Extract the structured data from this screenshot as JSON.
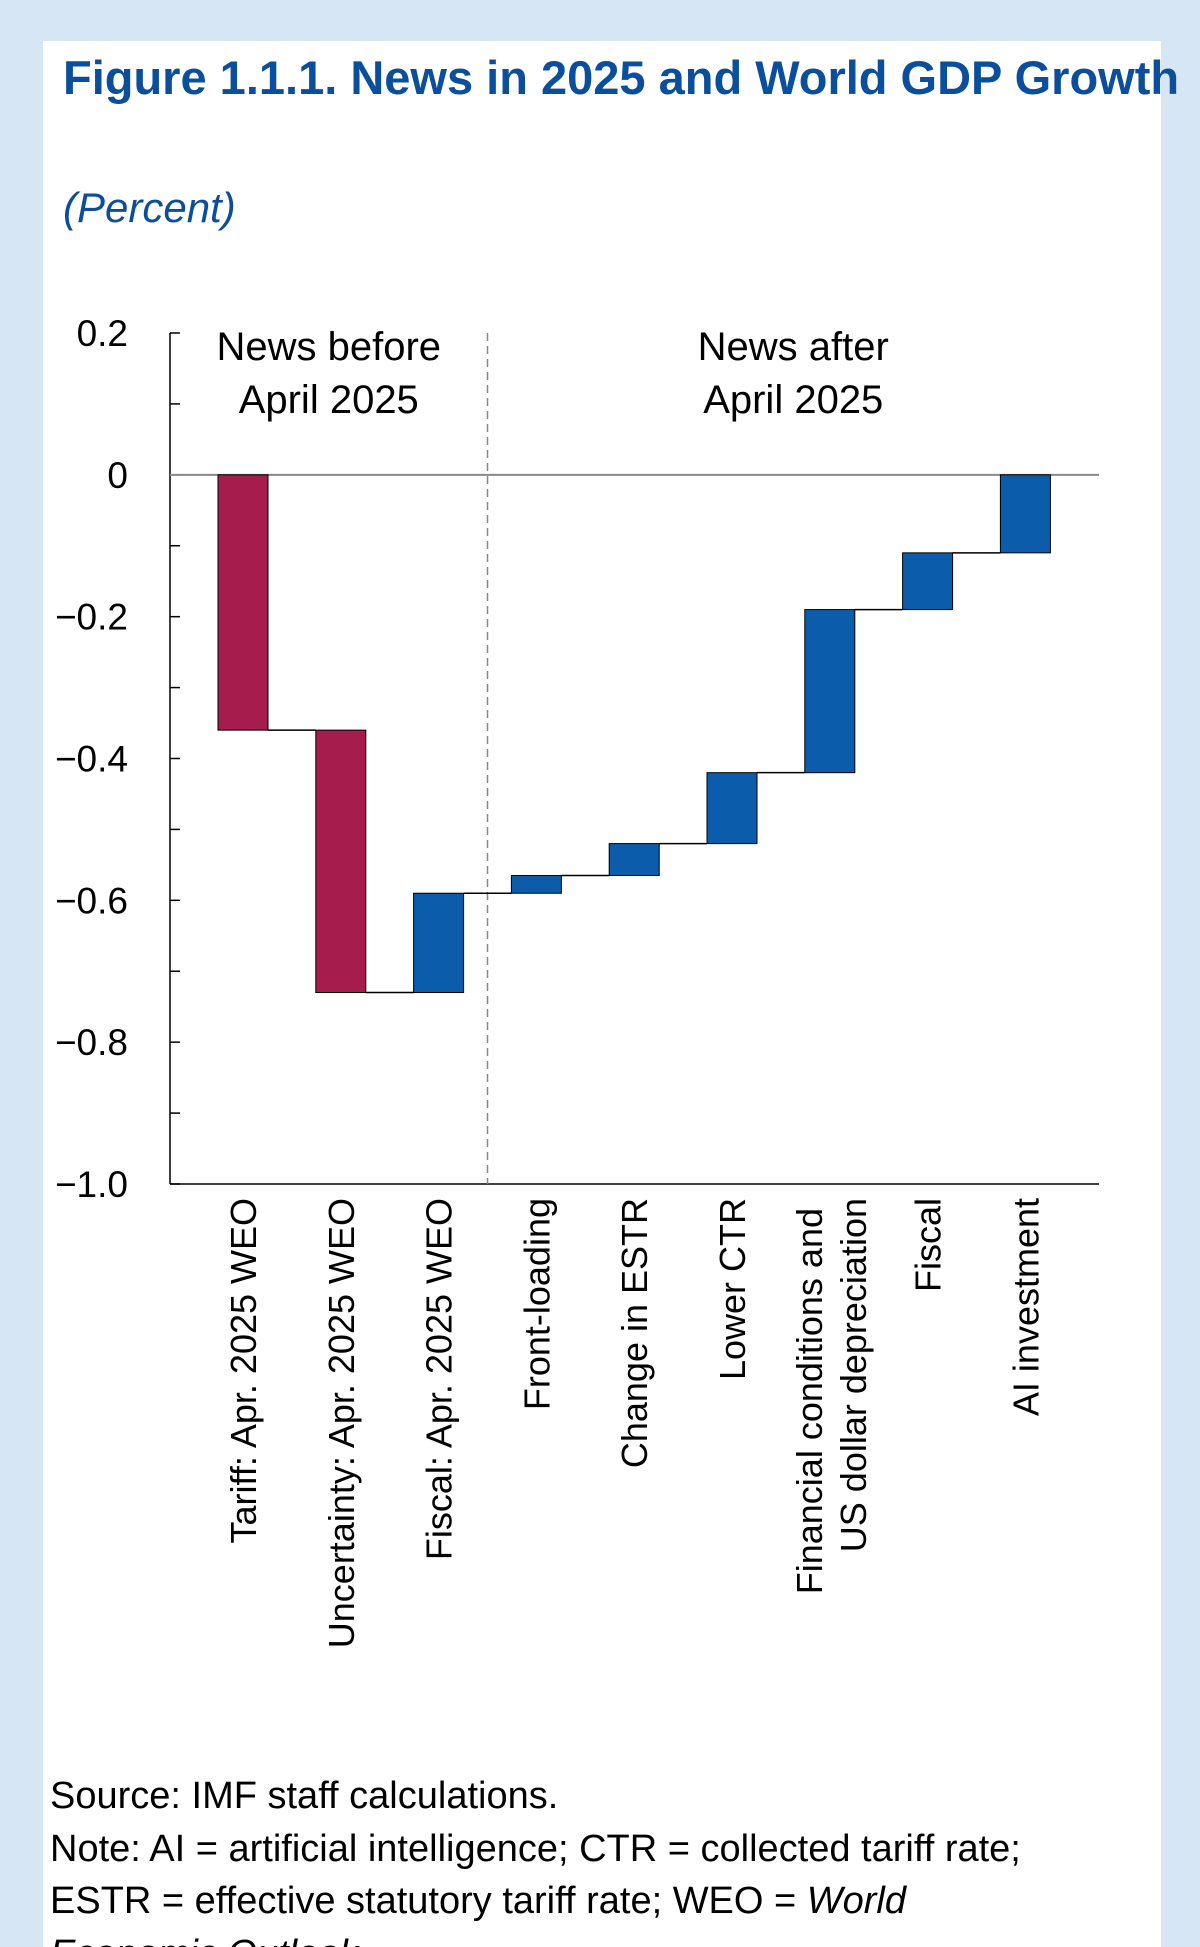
{
  "chart_data": {
    "type": "waterfall",
    "title": "Figure 1.1.1.  News in 2025 and World GDP Growth",
    "subtitle": "(Percent)",
    "categories": [
      "Tariff: Apr. 2025 WEO",
      "Uncertainty: Apr. 2025 WEO",
      "Fiscal: Apr. 2025 WEO",
      "Front-loading",
      "Change in ESTR",
      "Lower CTR",
      "Financial conditions and US dollar depreciation",
      "Fiscal",
      "AI investment"
    ],
    "values": [
      -0.36,
      -0.37,
      0.14,
      0.025,
      0.045,
      0.1,
      0.23,
      0.08,
      0.11
    ],
    "colors": [
      "#a51c4d",
      "#a51c4d",
      "#0b5cab",
      "#0b5cab",
      "#0b5cab",
      "#0b5cab",
      "#0b5cab",
      "#0b5cab",
      "#0b5cab"
    ],
    "groups": [
      {
        "label": [
          "News before",
          "April 2025"
        ],
        "count": 3
      },
      {
        "label": [
          "News after",
          "April 2025"
        ],
        "count": 6
      }
    ],
    "ylim": [
      -1.0,
      0.2
    ],
    "yticks": [
      {
        "value": 0.2,
        "label": "0.2"
      },
      0,
      {
        "value": -0.2,
        "label": "−0.2"
      },
      {
        "value": -0.4,
        "label": "−0.4"
      },
      {
        "value": -0.6,
        "label": "−0.6"
      },
      {
        "value": -0.8,
        "label": "−0.8"
      },
      {
        "value": -1.0,
        "label": "−1.0"
      }
    ],
    "yminorticks": [
      0.1,
      -0.1,
      -0.3,
      -0.5,
      -0.7,
      -0.9
    ],
    "source": "Source: IMF staff calculations.",
    "note": [
      "Note: AI = artificial intelligence; CTR = collected tariff rate;",
      "ESTR = effective statutory tariff rate; WEO = ",
      "World",
      "Economic Outlook."
    ]
  }
}
